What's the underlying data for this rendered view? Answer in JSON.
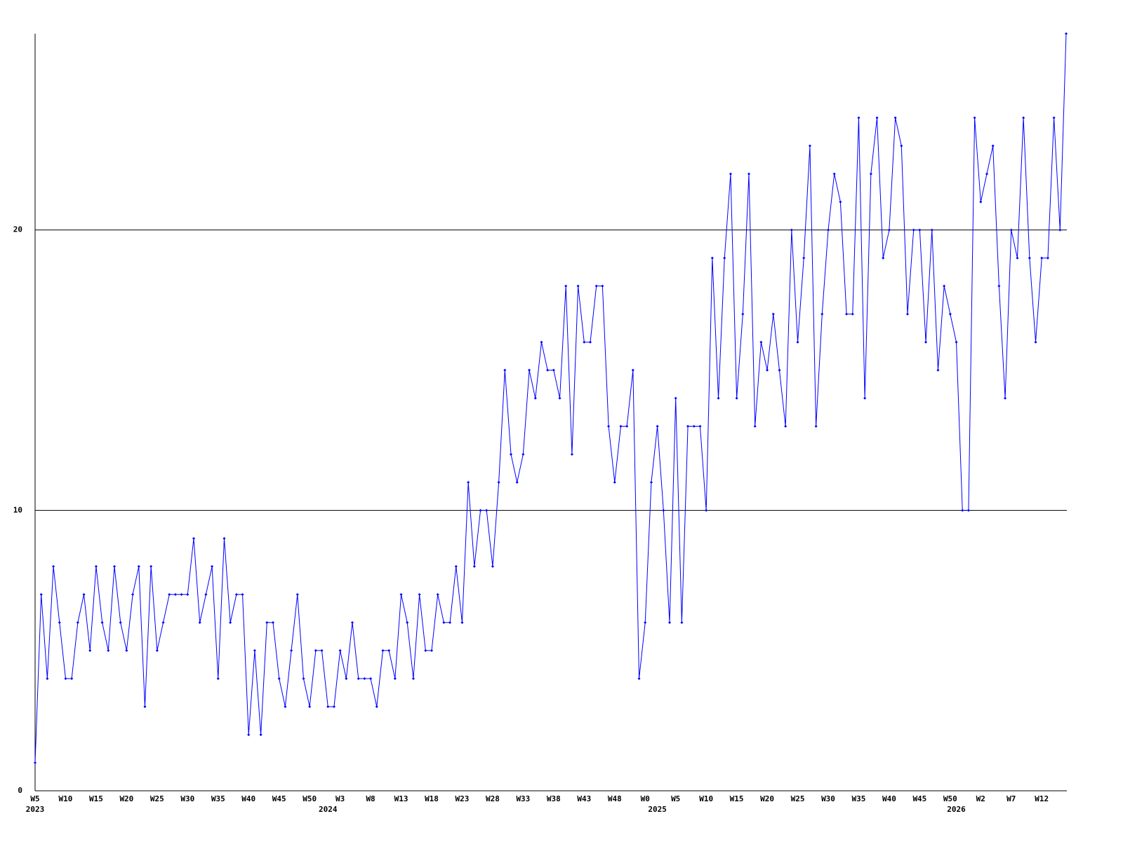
{
  "chart_data": {
    "type": "line",
    "categories": [
      "W5",
      null,
      null,
      null,
      null,
      "W10",
      null,
      null,
      null,
      null,
      "W15",
      null,
      null,
      null,
      null,
      "W20",
      null,
      null,
      null,
      null,
      "W25",
      null,
      null,
      null,
      null,
      "W30",
      null,
      null,
      null,
      null,
      "W35",
      null,
      null,
      null,
      null,
      "W40",
      null,
      null,
      null,
      null,
      "W45",
      null,
      null,
      null,
      null,
      "W50",
      null,
      null,
      null,
      null,
      "W3",
      null,
      null,
      null,
      null,
      "W8",
      null,
      null,
      null,
      null,
      "W13",
      null,
      null,
      null,
      null,
      "W18",
      null,
      null,
      null,
      null,
      "W23",
      null,
      null,
      null,
      null,
      "W28",
      null,
      null,
      null,
      null,
      "W33",
      null,
      null,
      null,
      null,
      "W38",
      null,
      null,
      null,
      null,
      "W43",
      null,
      null,
      null,
      null,
      "W48",
      null,
      null,
      null,
      null,
      "W0",
      null,
      null,
      null,
      null,
      "W5",
      null,
      null,
      null,
      null,
      "W10",
      null,
      null,
      null,
      null,
      "W15",
      null,
      null,
      null,
      null,
      "W20",
      null,
      null,
      null,
      null,
      "W25",
      null,
      null,
      null,
      null,
      "W30",
      null,
      null,
      null,
      null,
      "W35",
      null,
      null,
      null,
      null,
      "W40",
      null,
      null,
      null,
      null,
      "W45",
      null,
      null,
      null,
      null,
      "W50",
      null,
      null,
      null,
      null,
      "W2",
      null,
      null,
      null,
      null,
      "W7",
      null,
      null,
      null,
      null,
      "W12",
      null,
      null,
      null,
      null
    ],
    "year_labels": [
      "2023",
      null,
      null,
      null,
      null,
      null,
      null,
      null,
      null,
      null,
      null,
      null,
      null,
      null,
      null,
      null,
      null,
      null,
      null,
      null,
      null,
      null,
      null,
      null,
      null,
      null,
      null,
      null,
      null,
      null,
      null,
      null,
      null,
      null,
      null,
      null,
      null,
      null,
      null,
      null,
      null,
      null,
      null,
      null,
      null,
      null,
      null,
      null,
      "2024",
      null,
      null,
      null,
      null,
      null,
      null,
      null,
      null,
      null,
      null,
      null,
      null,
      null,
      null,
      null,
      null,
      null,
      null,
      null,
      null,
      null,
      null,
      null,
      null,
      null,
      null,
      null,
      null,
      null,
      null,
      null,
      null,
      null,
      null,
      null,
      null,
      null,
      null,
      null,
      null,
      null,
      null,
      null,
      null,
      null,
      null,
      null,
      null,
      null,
      null,
      null,
      null,
      null,
      "2025",
      null,
      null,
      null,
      null,
      null,
      null,
      null,
      null,
      null,
      null,
      null,
      null,
      null,
      null,
      null,
      null,
      null,
      null,
      null,
      null,
      null,
      null,
      null,
      null,
      null,
      null,
      null,
      null,
      null,
      null,
      null,
      null,
      null,
      null,
      null,
      null,
      null,
      null,
      null,
      null,
      null,
      null,
      null,
      null,
      null,
      null,
      null,
      null,
      "2026",
      null,
      null,
      null,
      null,
      null,
      null,
      null,
      null,
      null,
      null,
      null,
      null,
      null,
      null,
      null,
      null
    ],
    "series": [
      {
        "color": "#0000ff",
        "values": [
          1,
          7,
          4,
          8,
          6,
          4,
          4,
          6,
          7,
          5,
          8,
          6,
          5,
          8,
          6,
          5,
          7,
          8,
          3,
          8,
          5,
          6,
          7,
          7,
          7,
          7,
          9,
          6,
          7,
          8,
          4,
          9,
          6,
          7,
          7,
          2,
          5,
          2,
          6,
          6,
          4,
          3,
          5,
          7,
          4,
          3,
          5,
          5,
          3,
          3,
          5,
          4,
          6,
          4,
          4,
          4,
          3,
          5,
          5,
          4,
          7,
          6,
          4,
          7,
          5,
          5,
          7,
          6,
          6,
          8,
          6,
          11,
          8,
          10,
          10,
          8,
          11,
          15,
          12,
          11,
          12,
          15,
          14,
          16,
          15,
          15,
          14,
          18,
          12,
          18,
          16,
          16,
          18,
          18,
          13,
          11,
          13,
          13,
          15,
          4,
          6,
          11,
          13,
          10,
          6,
          14,
          6,
          13,
          13,
          13,
          10,
          19,
          14,
          19,
          22,
          14,
          17,
          22,
          13,
          16,
          15,
          17,
          15,
          13,
          20,
          16,
          19,
          23,
          13,
          17,
          20,
          22,
          21,
          17,
          17,
          24,
          14,
          22,
          24,
          19,
          20,
          24,
          23,
          17,
          20,
          20,
          16,
          20,
          15,
          18,
          17,
          16,
          10,
          10,
          24,
          21,
          22,
          23,
          18,
          14,
          20,
          19,
          24,
          19,
          16,
          19,
          19,
          24,
          20,
          27
        ]
      }
    ],
    "ylim": [
      0,
      27
    ],
    "yticks": [
      0,
      10,
      20
    ],
    "grid": true
  }
}
